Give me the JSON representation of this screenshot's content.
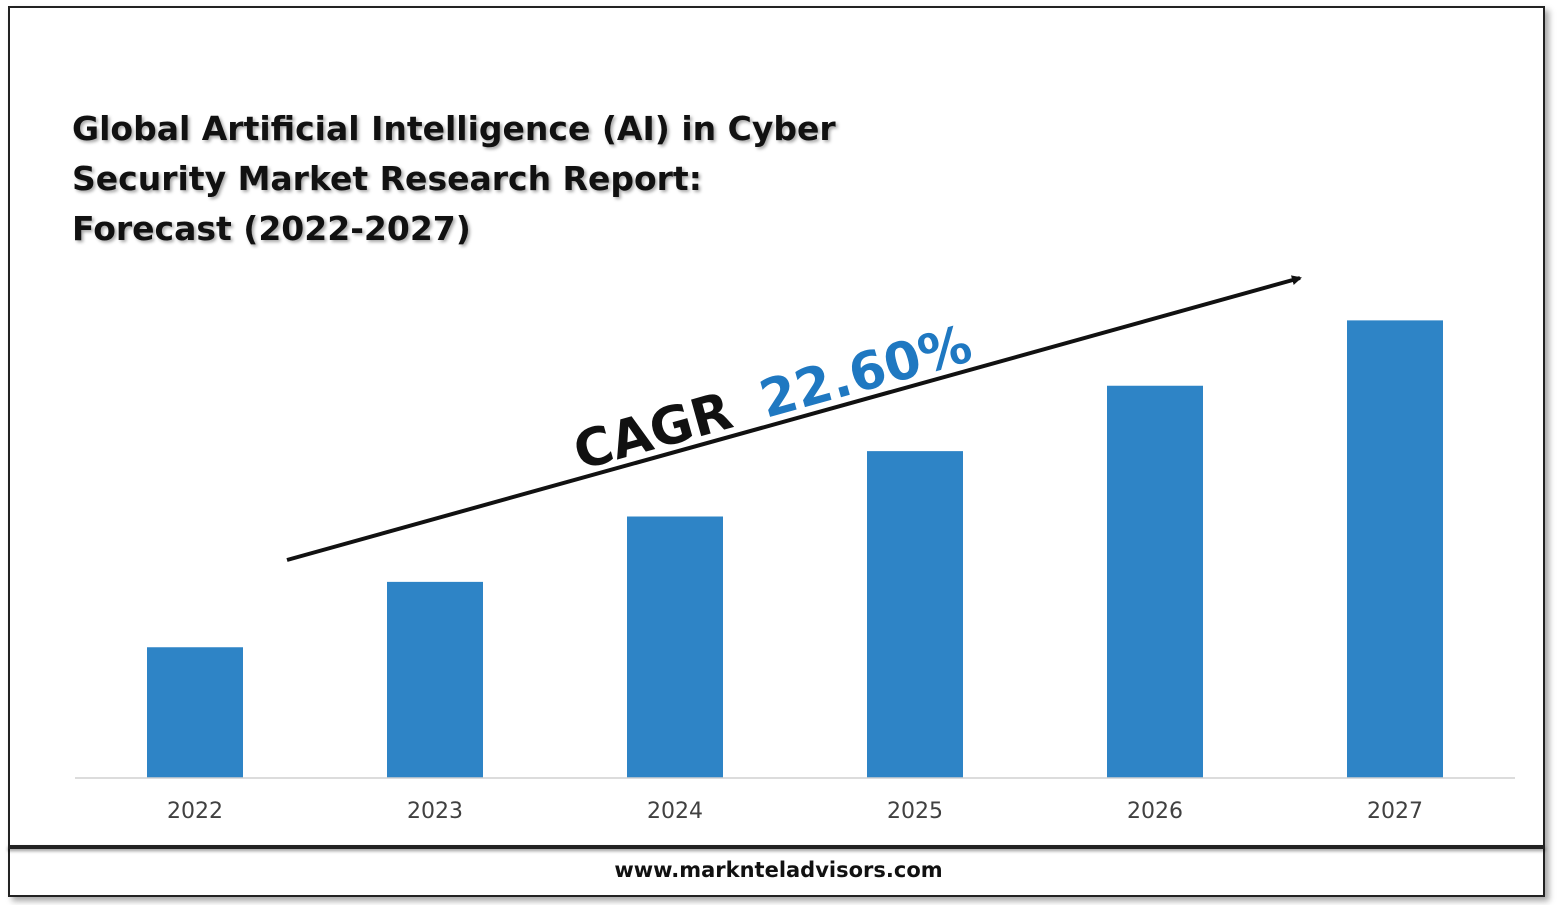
{
  "title_lines": [
    "Global Artificial Intelligence (AI) in Cyber",
    "Security Market Research Report:",
    "Forecast (2022-2027)"
  ],
  "cagr": {
    "label": "CAGR",
    "value": "22.60%"
  },
  "footer": {
    "url": "www.marknteladvisors.com"
  },
  "colors": {
    "bar": "#2e84c6",
    "cagr_value": "#1f78c1",
    "text": "#111111",
    "tick": "#404040"
  },
  "chart_data": {
    "type": "bar",
    "categories": [
      "2022",
      "2023",
      "2024",
      "2025",
      "2026",
      "2027"
    ],
    "values": [
      1.0,
      1.5,
      2.0,
      2.5,
      3.0,
      3.5
    ],
    "ylim": [
      0,
      4.0
    ],
    "grid": false,
    "legend": "none",
    "annotation": "CAGR 22.60%"
  }
}
